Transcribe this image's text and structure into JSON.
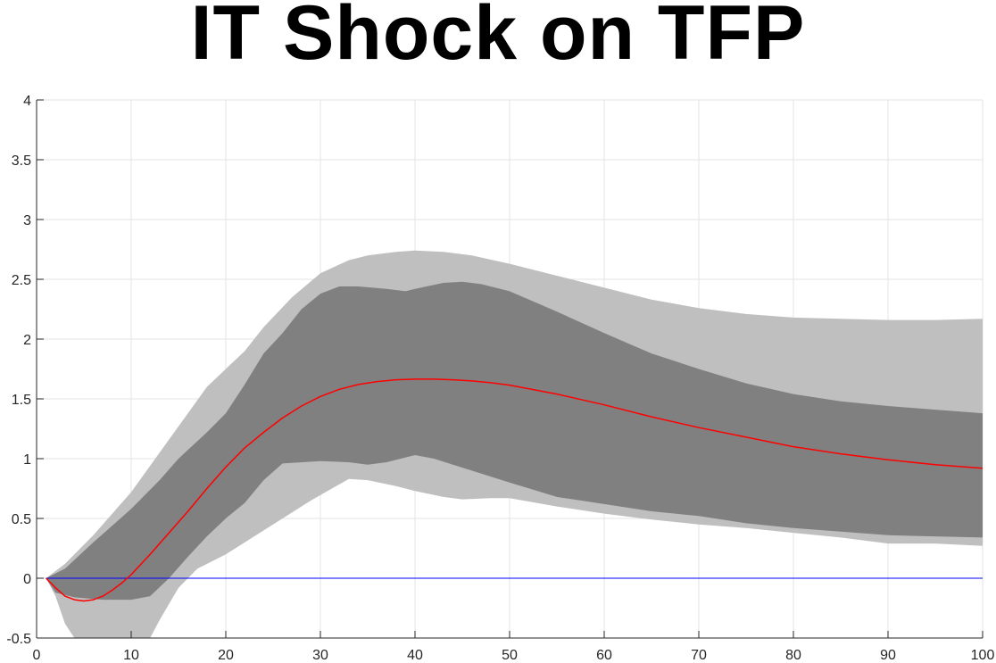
{
  "chart_data": {
    "type": "area",
    "title": "IT Shock on TFP",
    "xlabel": "",
    "ylabel": "",
    "xlim": [
      0,
      100
    ],
    "ylim": [
      -0.5,
      4
    ],
    "xticks": [
      0,
      10,
      20,
      30,
      40,
      50,
      60,
      70,
      80,
      90,
      100
    ],
    "yticks": [
      -0.5,
      0,
      0.5,
      1,
      1.5,
      2,
      2.5,
      3,
      3.5,
      4
    ],
    "ytick_labels": [
      "-0.5",
      "0",
      "0.5",
      "1",
      "1.5",
      "2",
      "2.5",
      "3",
      "3.5",
      "4"
    ],
    "grid": true,
    "colors": {
      "outer_band": "#bfbfbf",
      "inner_band": "#808080",
      "median": "#ff0000",
      "zero_line": "#0000ff",
      "grid": "#e3e3e3",
      "axis": "#262626"
    },
    "outer_band": {
      "upper": [
        [
          1,
          0
        ],
        [
          3,
          0.12
        ],
        [
          6,
          0.36
        ],
        [
          10,
          0.72
        ],
        [
          13,
          1.05
        ],
        [
          16,
          1.38
        ],
        [
          18,
          1.6
        ],
        [
          20,
          1.75
        ],
        [
          22,
          1.9
        ],
        [
          24,
          2.1
        ],
        [
          27,
          2.35
        ],
        [
          30,
          2.55
        ],
        [
          33,
          2.66
        ],
        [
          35,
          2.7
        ],
        [
          38,
          2.73
        ],
        [
          40,
          2.74
        ],
        [
          43,
          2.73
        ],
        [
          46,
          2.7
        ],
        [
          50,
          2.63
        ],
        [
          55,
          2.53
        ],
        [
          60,
          2.43
        ],
        [
          65,
          2.33
        ],
        [
          70,
          2.26
        ],
        [
          75,
          2.21
        ],
        [
          80,
          2.18
        ],
        [
          85,
          2.17
        ],
        [
          90,
          2.16
        ],
        [
          95,
          2.16
        ],
        [
          100,
          2.17
        ]
      ],
      "lower": [
        [
          1,
          0
        ],
        [
          2,
          -0.15
        ],
        [
          3,
          -0.38
        ],
        [
          4,
          -0.5
        ],
        [
          12,
          -0.5
        ],
        [
          13,
          -0.35
        ],
        [
          15,
          -0.08
        ],
        [
          17,
          0.08
        ],
        [
          20,
          0.2
        ],
        [
          23,
          0.35
        ],
        [
          26,
          0.5
        ],
        [
          29,
          0.65
        ],
        [
          31,
          0.74
        ],
        [
          33,
          0.83
        ],
        [
          35,
          0.82
        ],
        [
          38,
          0.77
        ],
        [
          40,
          0.73
        ],
        [
          43,
          0.68
        ],
        [
          45,
          0.66
        ],
        [
          48,
          0.67
        ],
        [
          50,
          0.67
        ],
        [
          55,
          0.6
        ],
        [
          60,
          0.54
        ],
        [
          65,
          0.49
        ],
        [
          70,
          0.45
        ],
        [
          75,
          0.42
        ],
        [
          80,
          0.38
        ],
        [
          85,
          0.34
        ],
        [
          90,
          0.29
        ],
        [
          95,
          0.29
        ],
        [
          100,
          0.27
        ]
      ]
    },
    "inner_band": {
      "upper": [
        [
          1,
          0
        ],
        [
          3,
          0.08
        ],
        [
          6,
          0.3
        ],
        [
          10,
          0.58
        ],
        [
          13,
          0.82
        ],
        [
          15,
          1.0
        ],
        [
          18,
          1.22
        ],
        [
          20,
          1.38
        ],
        [
          22,
          1.62
        ],
        [
          24,
          1.88
        ],
        [
          26,
          2.05
        ],
        [
          28,
          2.25
        ],
        [
          30,
          2.38
        ],
        [
          32,
          2.44
        ],
        [
          34,
          2.44
        ],
        [
          37,
          2.42
        ],
        [
          39,
          2.4
        ],
        [
          40,
          2.42
        ],
        [
          43,
          2.47
        ],
        [
          45,
          2.48
        ],
        [
          47,
          2.46
        ],
        [
          50,
          2.4
        ],
        [
          55,
          2.23
        ],
        [
          60,
          2.05
        ],
        [
          65,
          1.88
        ],
        [
          70,
          1.75
        ],
        [
          75,
          1.63
        ],
        [
          80,
          1.54
        ],
        [
          85,
          1.48
        ],
        [
          90,
          1.44
        ],
        [
          95,
          1.41
        ],
        [
          100,
          1.38
        ]
      ],
      "lower": [
        [
          1,
          0
        ],
        [
          2,
          -0.12
        ],
        [
          4,
          -0.16
        ],
        [
          7,
          -0.18
        ],
        [
          10,
          -0.18
        ],
        [
          12,
          -0.15
        ],
        [
          14,
          0.0
        ],
        [
          16,
          0.18
        ],
        [
          18,
          0.35
        ],
        [
          20,
          0.5
        ],
        [
          22,
          0.63
        ],
        [
          24,
          0.82
        ],
        [
          26,
          0.96
        ],
        [
          30,
          0.98
        ],
        [
          33,
          0.97
        ],
        [
          35,
          0.95
        ],
        [
          37,
          0.97
        ],
        [
          40,
          1.03
        ],
        [
          42,
          1.0
        ],
        [
          46,
          0.9
        ],
        [
          50,
          0.8
        ],
        [
          55,
          0.68
        ],
        [
          60,
          0.62
        ],
        [
          65,
          0.56
        ],
        [
          70,
          0.52
        ],
        [
          75,
          0.46
        ],
        [
          80,
          0.42
        ],
        [
          85,
          0.39
        ],
        [
          90,
          0.36
        ],
        [
          95,
          0.35
        ],
        [
          100,
          0.34
        ]
      ]
    },
    "series": [
      {
        "values": [
          [
            1,
            0
          ],
          [
            2,
            -0.08
          ],
          [
            3,
            -0.15
          ],
          [
            4,
            -0.18
          ],
          [
            5,
            -0.19
          ],
          [
            6,
            -0.18
          ],
          [
            7,
            -0.15
          ],
          [
            8,
            -0.1
          ],
          [
            9,
            -0.04
          ],
          [
            10,
            0.03
          ],
          [
            12,
            0.2
          ],
          [
            14,
            0.38
          ],
          [
            16,
            0.56
          ],
          [
            18,
            0.75
          ],
          [
            20,
            0.93
          ],
          [
            22,
            1.09
          ],
          [
            24,
            1.22
          ],
          [
            26,
            1.34
          ],
          [
            28,
            1.44
          ],
          [
            30,
            1.52
          ],
          [
            32,
            1.58
          ],
          [
            34,
            1.62
          ],
          [
            36,
            1.645
          ],
          [
            38,
            1.66
          ],
          [
            40,
            1.665
          ],
          [
            42,
            1.665
          ],
          [
            44,
            1.66
          ],
          [
            46,
            1.65
          ],
          [
            48,
            1.635
          ],
          [
            50,
            1.615
          ],
          [
            55,
            1.54
          ],
          [
            60,
            1.45
          ],
          [
            65,
            1.35
          ],
          [
            70,
            1.26
          ],
          [
            75,
            1.18
          ],
          [
            80,
            1.1
          ],
          [
            85,
            1.04
          ],
          [
            90,
            0.99
          ],
          [
            95,
            0.95
          ],
          [
            100,
            0.92
          ]
        ]
      },
      {
        "values": [
          [
            1,
            0
          ],
          [
            100,
            0
          ]
        ]
      }
    ]
  }
}
